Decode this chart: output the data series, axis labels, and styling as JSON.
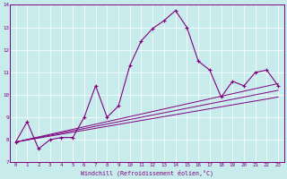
{
  "xlabel": "Windchill (Refroidissement éolien,°C)",
  "background_color": "#c8ecec",
  "line_color": "#800080",
  "grid_color": "#ffffff",
  "xlim": [
    -0.5,
    23.5
  ],
  "ylim": [
    7,
    14
  ],
  "xticks": [
    0,
    1,
    2,
    3,
    4,
    5,
    6,
    7,
    8,
    9,
    10,
    11,
    12,
    13,
    14,
    15,
    16,
    17,
    18,
    19,
    20,
    21,
    22,
    23
  ],
  "yticks": [
    7,
    8,
    9,
    10,
    11,
    12,
    13,
    14
  ],
  "main_x": [
    0,
    1,
    2,
    3,
    4,
    5,
    6,
    7,
    8,
    9,
    10,
    11,
    12,
    13,
    14,
    15,
    16,
    17,
    18,
    19,
    20,
    21,
    22,
    23
  ],
  "main_y": [
    7.9,
    8.8,
    7.6,
    8.0,
    8.1,
    8.1,
    9.0,
    10.4,
    9.0,
    9.5,
    11.3,
    12.4,
    12.95,
    13.3,
    13.75,
    13.0,
    11.5,
    11.1,
    9.9,
    10.6,
    10.4,
    11.0,
    11.1,
    10.4
  ],
  "line1_x": [
    0,
    23
  ],
  "line1_y": [
    7.9,
    10.5
  ],
  "line2_x": [
    0,
    23
  ],
  "line2_y": [
    7.9,
    9.9
  ],
  "line3_x": [
    0,
    23
  ],
  "line3_y": [
    7.9,
    10.2
  ]
}
